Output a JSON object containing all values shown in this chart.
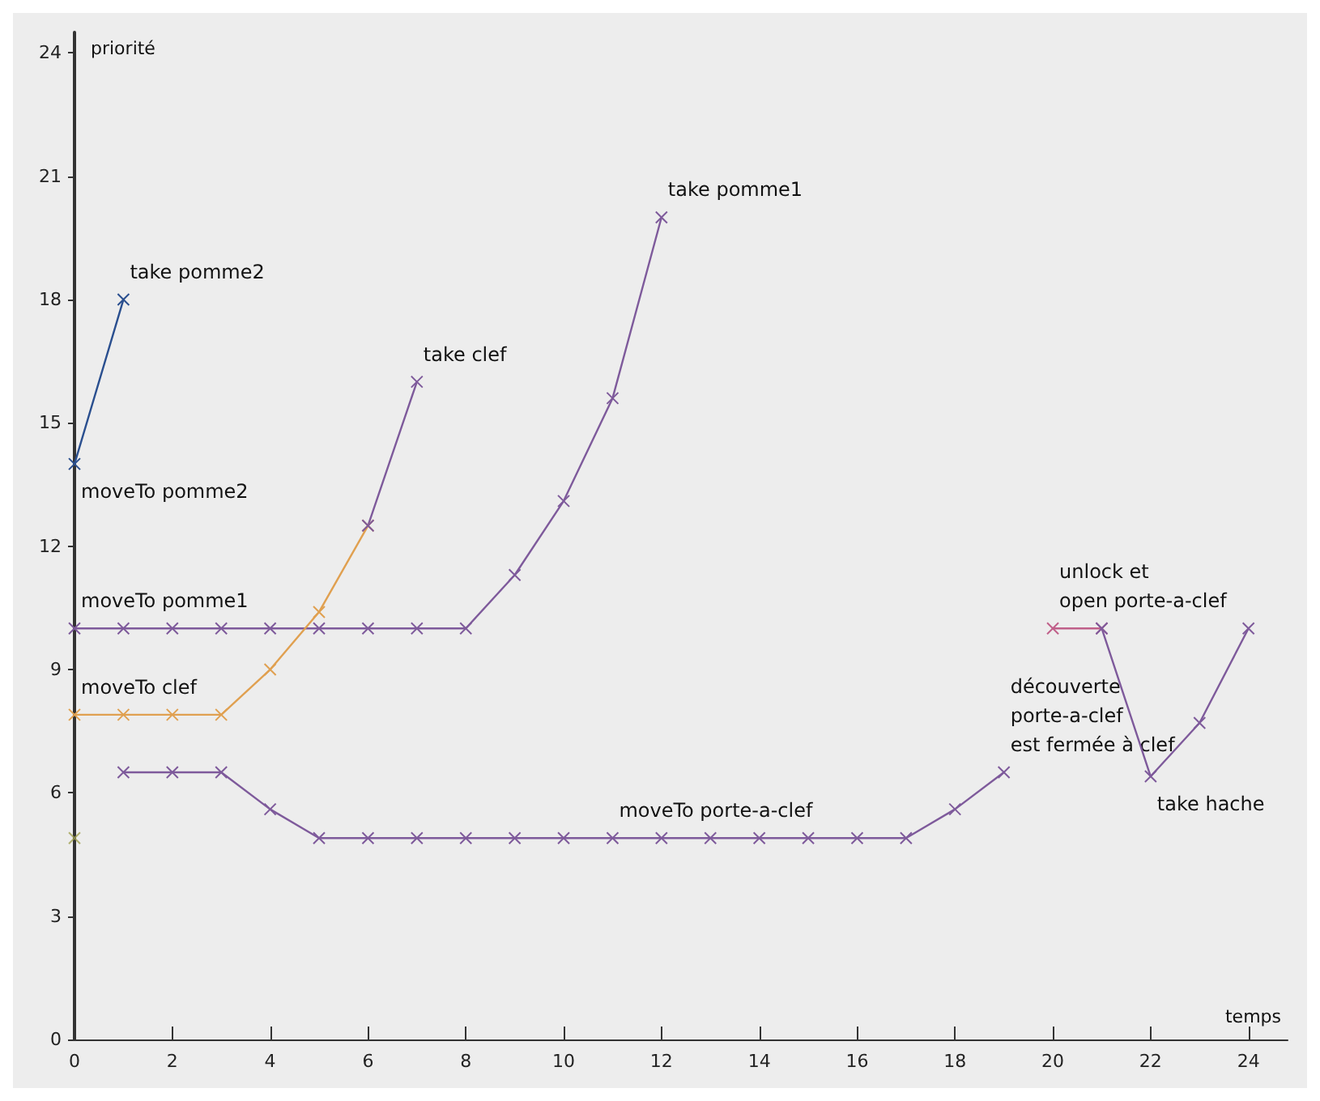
{
  "chart_data": {
    "type": "line",
    "xlabel": "temps",
    "ylabel": "priorité",
    "xlim": [
      0,
      24.8
    ],
    "ylim": [
      0,
      24.5
    ],
    "xticks": [
      0,
      2,
      4,
      6,
      8,
      10,
      12,
      14,
      16,
      18,
      20,
      22,
      24
    ],
    "yticks": [
      0,
      3,
      6,
      9,
      12,
      15,
      18,
      21,
      24
    ],
    "grid": false,
    "marker": "cross",
    "line_style": "solid",
    "series": [
      {
        "color": "#2a4f8f",
        "x": [
          0,
          1
        ],
        "values": [
          14,
          18
        ]
      },
      {
        "color": "#7e5a9b",
        "x": [
          0,
          1,
          2,
          3,
          4,
          5,
          6,
          7,
          8,
          9,
          10,
          11,
          12
        ],
        "values": [
          10,
          10,
          10,
          10,
          10,
          10,
          10,
          10,
          10,
          11.3,
          13.1,
          15.6,
          20
        ]
      },
      {
        "color": "#e0a050",
        "x": [
          0,
          1,
          2,
          3,
          4,
          5,
          6
        ],
        "values": [
          7.9,
          7.9,
          7.9,
          7.9,
          9,
          10.4,
          12.5
        ]
      },
      {
        "color": "#7e5a9b",
        "x": [
          6,
          7
        ],
        "values": [
          12.5,
          16
        ]
      },
      {
        "color": "#7e5a9b",
        "x": [
          1,
          2,
          3,
          4,
          5,
          6,
          7,
          8,
          9,
          10,
          11,
          12,
          13,
          14,
          15,
          16,
          17,
          18,
          19
        ],
        "values": [
          6.5,
          6.5,
          6.5,
          5.6,
          4.9,
          4.9,
          4.9,
          4.9,
          4.9,
          4.9,
          4.9,
          4.9,
          4.9,
          4.9,
          4.9,
          4.9,
          4.9,
          5.6,
          6.5
        ]
      },
      {
        "type": "scatter",
        "color": "#a0a050",
        "x": [
          0
        ],
        "values": [
          4.9
        ]
      },
      {
        "color": "#c0608a",
        "x": [
          20,
          21
        ],
        "values": [
          10,
          10
        ]
      },
      {
        "color": "#7e5a9b",
        "x": [
          21,
          22,
          23,
          24
        ],
        "values": [
          10,
          6.4,
          7.7,
          10
        ]
      }
    ],
    "annotations": [
      {
        "text": "take pomme2",
        "x": 1,
        "y": 18
      },
      {
        "text": "moveTo pomme2",
        "x": 0,
        "y": 14
      },
      {
        "text": "moveTo pomme1",
        "x": 0,
        "y": 10
      },
      {
        "text": "moveTo clef",
        "x": 0,
        "y": 7.9
      },
      {
        "text": "take clef",
        "x": 7,
        "y": 16
      },
      {
        "text": "take pomme1",
        "x": 12,
        "y": 20
      },
      {
        "text": "moveTo porte-a-clef",
        "x": 11,
        "y": 4.9
      },
      {
        "text": "découverte\nporte-a-clef\nest fermée à clef",
        "x": 19,
        "y": 6.5
      },
      {
        "text": "unlock et\nopen porte-a-clef",
        "x": 20,
        "y": 10
      },
      {
        "text": "take hache",
        "x": 22,
        "y": 6.4
      }
    ]
  }
}
